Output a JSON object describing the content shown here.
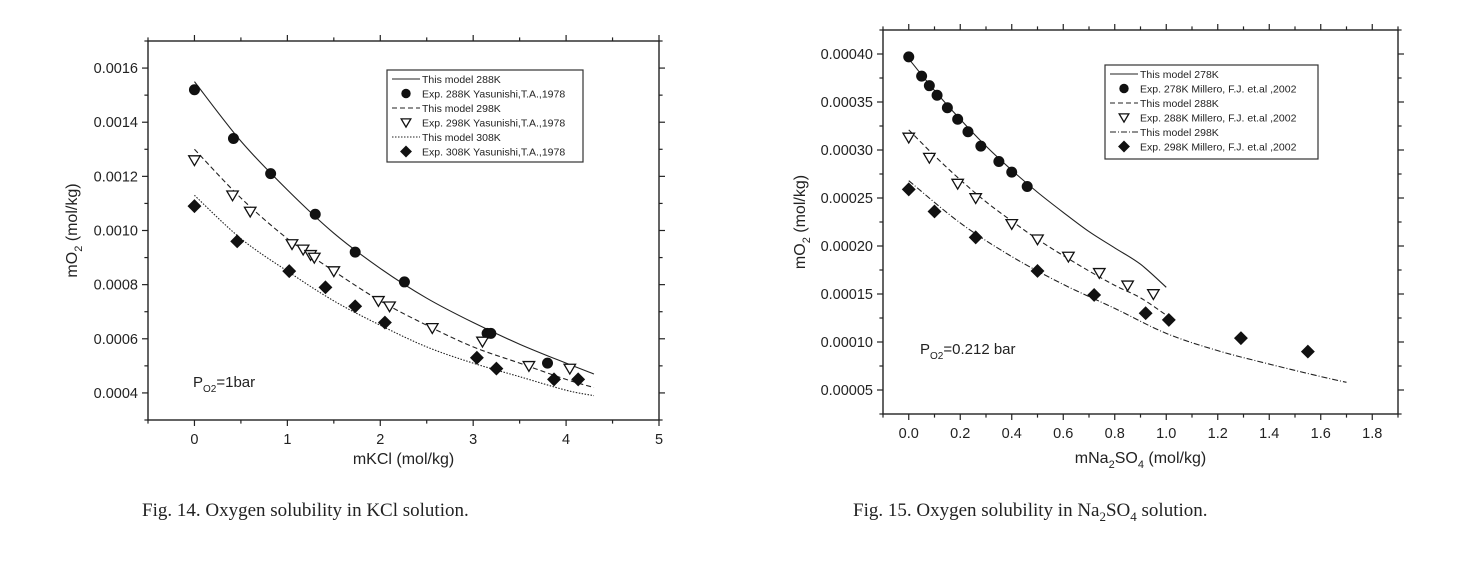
{
  "chart_data": [
    {
      "type": "scatter",
      "caption": "Fig. 14. Oxygen solubility in KCl solution.",
      "xlabel": "mKCl (mol/kg)",
      "ylabel_main": "mO",
      "ylabel_sub": "2",
      "ylabel_rest": " (mol/kg)",
      "xlim": [
        -0.5,
        5
      ],
      "ylim": [
        0.0003,
        0.0017
      ],
      "xticks": [
        0,
        1,
        2,
        3,
        4,
        5
      ],
      "xtick_labels": [
        "0",
        "1",
        "2",
        "3",
        "4",
        "5"
      ],
      "yticks": [
        0.0004,
        0.0006,
        0.0008,
        0.001,
        0.0012,
        0.0014,
        0.0016
      ],
      "ytick_labels": [
        "0.0004",
        "0.0006",
        "0.0008",
        "0.0010",
        "0.0012",
        "0.0014",
        "0.0016"
      ],
      "grid": false,
      "legend_position": "top-right",
      "annotation": {
        "main": "P",
        "sub": "O2",
        "rest": "=1bar"
      },
      "series": [
        {
          "name": "This model 288K",
          "kind": "line",
          "style": "solid",
          "x": [
            0,
            0.5,
            1.0,
            1.5,
            2.0,
            2.5,
            3.0,
            3.5,
            4.0,
            4.3
          ],
          "y": [
            0.00155,
            0.00133,
            0.00115,
            0.00099,
            0.00086,
            0.00075,
            0.00066,
            0.00058,
            0.00051,
            0.00047
          ]
        },
        {
          "name": "Exp. 288K Yasunishi,T.A.,1978",
          "kind": "marker",
          "marker": "circle",
          "x": [
            0,
            0.42,
            0.82,
            1.3,
            1.73,
            2.26,
            3.15,
            3.19,
            3.8
          ],
          "y": [
            0.00152,
            0.00134,
            0.00121,
            0.00106,
            0.00092,
            0.00081,
            0.00062,
            0.00062,
            0.00051
          ]
        },
        {
          "name": "This model 298K",
          "kind": "line",
          "style": "dashed",
          "x": [
            0,
            0.5,
            1.0,
            1.5,
            2.0,
            2.5,
            3.0,
            3.5,
            4.0,
            4.3
          ],
          "y": [
            0.0013,
            0.00112,
            0.00097,
            0.00085,
            0.00074,
            0.00065,
            0.00057,
            0.00051,
            0.00045,
            0.00042
          ]
        },
        {
          "name": "Exp. 298K Yasunishi,T.A.,1978",
          "kind": "marker",
          "marker": "triangle-down",
          "x": [
            0,
            0.41,
            0.6,
            1.05,
            1.17,
            1.25,
            1.29,
            1.5,
            1.98,
            2.1,
            2.56,
            3.1,
            3.6,
            4.04
          ],
          "y": [
            0.00126,
            0.00113,
            0.00107,
            0.00095,
            0.00093,
            0.00091,
            0.0009,
            0.00085,
            0.00074,
            0.00072,
            0.00064,
            0.00059,
            0.0005,
            0.00049
          ]
        },
        {
          "name": "This model 308K",
          "kind": "line",
          "style": "dotted",
          "x": [
            0,
            0.5,
            1.0,
            1.5,
            2.0,
            2.5,
            3.0,
            3.5,
            4.0,
            4.3
          ],
          "y": [
            0.00113,
            0.00097,
            0.00085,
            0.00074,
            0.00065,
            0.00057,
            0.00051,
            0.00046,
            0.00041,
            0.00039
          ]
        },
        {
          "name": "Exp. 308K Yasunishi,T.A.,1978",
          "kind": "marker",
          "marker": "diamond",
          "x": [
            0,
            0.46,
            1.02,
            1.41,
            1.73,
            2.05,
            3.04,
            3.25,
            3.87,
            4.13
          ],
          "y": [
            0.00109,
            0.00096,
            0.00085,
            0.00079,
            0.00072,
            0.00066,
            0.00053,
            0.00049,
            0.00045,
            0.00045
          ]
        }
      ]
    },
    {
      "type": "scatter",
      "caption_pre": "Fig. 15. Oxygen solubility in Na",
      "caption_sub1": "2",
      "caption_mid": "SO",
      "caption_sub2": "4",
      "caption_post": " solution.",
      "xlabel_pre": "mNa",
      "xlabel_sub1": "2",
      "xlabel_mid": "SO",
      "xlabel_sub2": "4",
      "xlabel_post": " (mol/kg)",
      "ylabel_main": "mO",
      "ylabel_sub": "2",
      "ylabel_rest": " (mol/kg)",
      "xlim": [
        -0.1,
        1.9
      ],
      "ylim": [
        2.5e-05,
        0.000425
      ],
      "xticks": [
        0.0,
        0.2,
        0.4,
        0.6,
        0.8,
        1.0,
        1.2,
        1.4,
        1.6,
        1.8
      ],
      "xtick_labels": [
        "0.0",
        "0.2",
        "0.4",
        "0.6",
        "0.8",
        "1.0",
        "1.2",
        "1.4",
        "1.6",
        "1.8"
      ],
      "yticks": [
        5e-05,
        0.0001,
        0.00015,
        0.0002,
        0.00025,
        0.0003,
        0.00035,
        0.0004
      ],
      "ytick_labels": [
        "0.00005",
        "0.00010",
        "0.00015",
        "0.00020",
        "0.00025",
        "0.00030",
        "0.00035",
        "0.00040"
      ],
      "grid": false,
      "legend_position": "top-right",
      "annotation": {
        "main": "P",
        "sub": "O2",
        "rest": "=0.212 bar"
      },
      "series": [
        {
          "name": "This model 278K",
          "kind": "line",
          "style": "solid",
          "x": [
            0,
            0.1,
            0.2,
            0.3,
            0.4,
            0.5,
            0.6,
            0.7,
            0.8,
            0.9,
            1.0
          ],
          "y": [
            0.000395,
            0.000362,
            0.000332,
            0.000304,
            0.000279,
            0.000256,
            0.000235,
            0.000215,
            0.000198,
            0.000181,
            0.000157
          ]
        },
        {
          "name": "Exp. 278K Millero, F.J. et.al ,2002",
          "kind": "marker",
          "marker": "circle",
          "x": [
            0,
            0.05,
            0.08,
            0.11,
            0.15,
            0.19,
            0.23,
            0.28,
            0.35,
            0.4,
            0.46
          ],
          "y": [
            0.000397,
            0.000377,
            0.000367,
            0.000357,
            0.000344,
            0.000332,
            0.000319,
            0.000304,
            0.000288,
            0.000277,
            0.000262
          ]
        },
        {
          "name": "This model 288K",
          "kind": "line",
          "style": "dashed",
          "x": [
            0,
            0.1,
            0.2,
            0.3,
            0.4,
            0.5,
            0.6,
            0.7,
            0.8,
            0.9,
            1.0
          ],
          "y": [
            0.000321,
            0.000294,
            0.000269,
            0.000246,
            0.000226,
            0.000207,
            0.00019,
            0.000174,
            0.000159,
            0.000146,
            0.000128
          ]
        },
        {
          "name": "Exp. 288K Millero, F.J. et.al ,2002",
          "kind": "marker",
          "marker": "triangle-down",
          "x": [
            0,
            0.08,
            0.19,
            0.26,
            0.4,
            0.5,
            0.62,
            0.74,
            0.85,
            0.95
          ],
          "y": [
            0.000313,
            0.000292,
            0.000265,
            0.00025,
            0.000223,
            0.000207,
            0.000189,
            0.000172,
            0.000159,
            0.00015
          ]
        },
        {
          "name": "This model 298K",
          "kind": "line",
          "style": "dashdot",
          "x": [
            0,
            0.2,
            0.4,
            0.6,
            0.8,
            1.0,
            1.2,
            1.4,
            1.6,
            1.7
          ],
          "y": [
            0.000268,
            0.000224,
            0.000189,
            0.00016,
            0.000135,
            0.000109,
            9.1e-05,
            7.7e-05,
            6.4e-05,
            5.8e-05
          ]
        },
        {
          "name": "Exp. 298K Millero, F.J. et.al ,2002",
          "kind": "marker",
          "marker": "diamond",
          "x": [
            0,
            0.1,
            0.26,
            0.5,
            0.72,
            0.92,
            1.01,
            1.29,
            1.55
          ],
          "y": [
            0.000259,
            0.000236,
            0.000209,
            0.000174,
            0.000149,
            0.00013,
            0.000123,
            0.000104,
            9e-05
          ]
        }
      ]
    }
  ]
}
